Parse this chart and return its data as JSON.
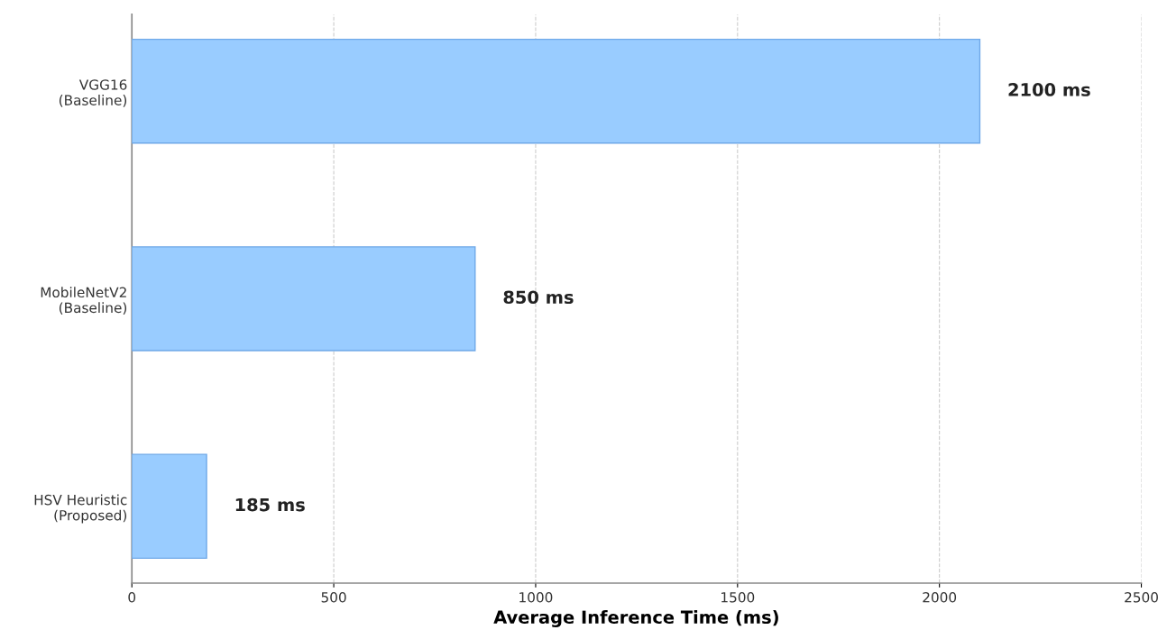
{
  "chart_data": {
    "type": "bar",
    "orientation": "horizontal",
    "categories": [
      "VGG16\n(Baseline)",
      "MobileNetV2\n(Baseline)",
      "HSV Heuristic\n(Proposed)"
    ],
    "values": [
      2100,
      850,
      185
    ],
    "value_labels": [
      "2100 ms",
      "850 ms",
      "185 ms"
    ],
    "color": "#99ccff",
    "xlabel": "Average Inference Time (ms)",
    "xlim": [
      0,
      2500
    ],
    "xticks": [
      0,
      500,
      1000,
      1500,
      2000,
      2500
    ],
    "grid": "x",
    "legend": false
  }
}
